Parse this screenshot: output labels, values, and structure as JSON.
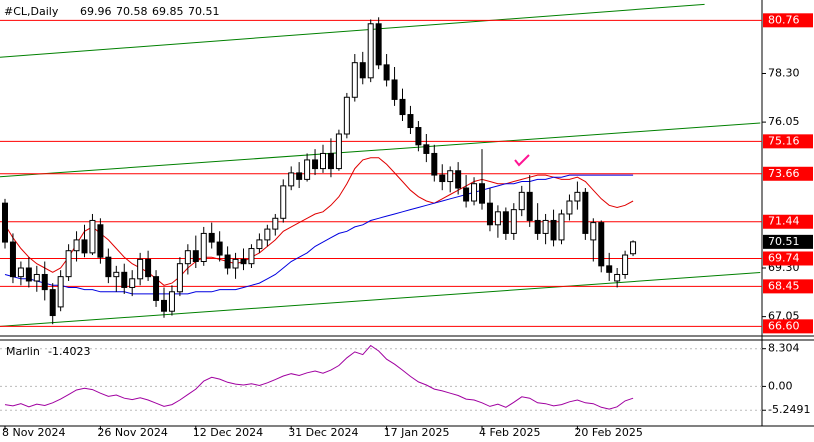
{
  "chart_data": {
    "type": "candlestick",
    "title": "#CL,Daily",
    "categories": [
      "8 Nov 2024",
      null,
      null,
      null,
      null,
      null,
      null,
      null,
      null,
      null,
      null,
      null,
      "26 Nov 2024",
      null,
      null,
      null,
      null,
      null,
      null,
      null,
      null,
      null,
      null,
      null,
      "12 Dec 2024",
      null,
      null,
      null,
      null,
      null,
      null,
      null,
      null,
      null,
      null,
      null,
      "31 Dec 2024",
      null,
      null,
      null,
      null,
      null,
      null,
      null,
      null,
      null,
      null,
      null,
      "17 Jan 2025",
      null,
      null,
      null,
      null,
      null,
      null,
      null,
      null,
      null,
      null,
      null,
      "4 Feb 2025",
      null,
      null,
      null,
      null,
      null,
      null,
      null,
      null,
      null,
      null,
      null,
      "20 Feb 2025",
      null,
      null,
      null,
      null,
      null,
      null,
      null
    ],
    "ohlc": [
      [
        72.3,
        72.5,
        70.2,
        70.5
      ],
      [
        70.5,
        70.9,
        68.6,
        68.9
      ],
      [
        68.9,
        69.6,
        68.5,
        69.3
      ],
      [
        69.3,
        69.8,
        68.4,
        68.7
      ],
      [
        68.7,
        69.4,
        68.2,
        69.0
      ],
      [
        69.0,
        69.6,
        67.8,
        68.3
      ],
      [
        68.3,
        68.6,
        66.7,
        67.1
      ],
      [
        67.5,
        69.2,
        67.3,
        68.9
      ],
      [
        68.9,
        70.4,
        68.7,
        70.1
      ],
      [
        70.1,
        71.0,
        69.6,
        70.6
      ],
      [
        70.6,
        71.3,
        69.8,
        70.0
      ],
      [
        70.0,
        71.8,
        69.9,
        71.5
      ],
      [
        71.3,
        71.6,
        69.5,
        69.8
      ],
      [
        69.8,
        70.2,
        68.6,
        68.9
      ],
      [
        68.9,
        69.4,
        68.2,
        69.1
      ],
      [
        69.1,
        69.5,
        68.1,
        68.4
      ],
      [
        68.4,
        69.2,
        68.0,
        68.8
      ],
      [
        68.8,
        70.0,
        68.5,
        69.7
      ],
      [
        69.7,
        70.1,
        68.7,
        68.9
      ],
      [
        68.9,
        69.2,
        67.5,
        67.8
      ],
      [
        67.8,
        68.4,
        67.0,
        67.3
      ],
      [
        67.3,
        68.5,
        67.1,
        68.2
      ],
      [
        68.2,
        69.8,
        68.0,
        69.5
      ],
      [
        69.5,
        70.4,
        69.0,
        70.1
      ],
      [
        70.1,
        70.8,
        69.3,
        69.6
      ],
      [
        69.6,
        71.2,
        69.4,
        70.9
      ],
      [
        70.9,
        71.4,
        70.2,
        70.5
      ],
      [
        70.5,
        71.0,
        69.6,
        69.9
      ],
      [
        69.9,
        70.3,
        69.0,
        69.3
      ],
      [
        69.3,
        70.0,
        68.8,
        69.7
      ],
      [
        69.7,
        70.2,
        69.2,
        69.5
      ],
      [
        69.5,
        70.4,
        69.3,
        70.2
      ],
      [
        70.2,
        70.9,
        70.0,
        70.6
      ],
      [
        70.6,
        71.3,
        70.3,
        71.1
      ],
      [
        71.1,
        71.8,
        70.8,
        71.6
      ],
      [
        71.6,
        73.4,
        71.4,
        73.1
      ],
      [
        73.1,
        74.0,
        72.9,
        73.7
      ],
      [
        73.7,
        74.2,
        73.0,
        73.4
      ],
      [
        73.4,
        74.6,
        73.3,
        74.3
      ],
      [
        74.3,
        74.8,
        73.6,
        73.9
      ],
      [
        73.9,
        75.0,
        73.7,
        74.6
      ],
      [
        74.6,
        75.3,
        73.5,
        73.9
      ],
      [
        73.9,
        75.7,
        73.8,
        75.5
      ],
      [
        75.5,
        77.4,
        75.3,
        77.2
      ],
      [
        77.2,
        79.2,
        77.0,
        78.8
      ],
      [
        78.8,
        79.3,
        77.8,
        78.1
      ],
      [
        78.1,
        80.8,
        77.9,
        80.6
      ],
      [
        80.6,
        80.9,
        78.5,
        78.7
      ],
      [
        78.7,
        79.2,
        77.7,
        78.0
      ],
      [
        78.0,
        78.6,
        76.8,
        77.1
      ],
      [
        77.1,
        77.6,
        76.1,
        76.4
      ],
      [
        76.4,
        76.8,
        75.5,
        75.8
      ],
      [
        75.8,
        76.1,
        74.7,
        75.0
      ],
      [
        75.0,
        75.5,
        74.2,
        74.6
      ],
      [
        74.6,
        75.0,
        73.3,
        73.6
      ],
      [
        73.6,
        74.1,
        72.9,
        73.3
      ],
      [
        73.3,
        74.0,
        72.8,
        73.8
      ],
      [
        73.8,
        74.2,
        72.7,
        73.0
      ],
      [
        73.0,
        73.6,
        72.1,
        72.4
      ],
      [
        72.4,
        73.5,
        72.2,
        73.2
      ],
      [
        73.2,
        74.8,
        72.0,
        72.3
      ],
      [
        72.3,
        73.0,
        71.0,
        71.3
      ],
      [
        71.3,
        72.2,
        70.7,
        71.9
      ],
      [
        71.9,
        72.1,
        70.6,
        70.9
      ],
      [
        70.9,
        72.3,
        70.6,
        72.0
      ],
      [
        72.0,
        73.1,
        71.7,
        72.8
      ],
      [
        72.8,
        73.6,
        71.2,
        71.5
      ],
      [
        71.5,
        72.3,
        70.6,
        70.9
      ],
      [
        70.9,
        71.8,
        70.4,
        71.5
      ],
      [
        71.5,
        72.0,
        70.3,
        70.6
      ],
      [
        70.6,
        72.0,
        70.4,
        71.8
      ],
      [
        71.8,
        72.7,
        71.5,
        72.4
      ],
      [
        72.4,
        73.3,
        72.0,
        72.8
      ],
      [
        72.8,
        73.0,
        70.6,
        70.9
      ],
      [
        70.6,
        71.6,
        69.6,
        71.4
      ],
      [
        71.4,
        71.5,
        69.1,
        69.4
      ],
      [
        69.4,
        70.0,
        68.7,
        69.1
      ],
      [
        68.7,
        69.3,
        68.4,
        69.0
      ],
      [
        69.0,
        70.1,
        68.8,
        69.9
      ],
      [
        69.96,
        70.58,
        69.85,
        70.51
      ]
    ],
    "lines": [
      {
        "color": "#e00000",
        "values": [
          71.3,
          70.7,
          70.2,
          69.8,
          69.5,
          69.3,
          69.1,
          69.3,
          69.8,
          70.4,
          71.0,
          71.2,
          70.9,
          70.6,
          70.2,
          69.8,
          69.5,
          69.3,
          69.1,
          68.8,
          68.5,
          68.6,
          68.9,
          69.3,
          69.6,
          69.8,
          69.8,
          69.7,
          69.6,
          69.5,
          69.6,
          69.8,
          70.0,
          70.3,
          70.6,
          71.0,
          71.2,
          71.4,
          71.6,
          71.8,
          71.9,
          72.2,
          72.6,
          73.2,
          73.9,
          74.3,
          74.4,
          74.4,
          74.1,
          73.7,
          73.3,
          72.9,
          72.6,
          72.4,
          72.3,
          72.5,
          72.7,
          72.9,
          73.1,
          73.3,
          73.4,
          73.3,
          73.2,
          73.2,
          73.3,
          73.4,
          73.5,
          73.6,
          73.6,
          73.5,
          73.4,
          73.4,
          73.5,
          73.3,
          72.9,
          72.5,
          72.2,
          72.1,
          72.2,
          72.4
        ]
      },
      {
        "color": "#0000e0",
        "values": [
          69.0,
          68.9,
          68.8,
          68.8,
          68.7,
          68.6,
          68.5,
          68.5,
          68.4,
          68.4,
          68.3,
          68.3,
          68.2,
          68.2,
          68.2,
          68.2,
          68.1,
          68.1,
          68.1,
          68.1,
          68.1,
          68.1,
          68.1,
          68.1,
          68.2,
          68.2,
          68.2,
          68.3,
          68.3,
          68.3,
          68.4,
          68.5,
          68.6,
          68.8,
          69.0,
          69.3,
          69.6,
          69.8,
          70.0,
          70.3,
          70.5,
          70.7,
          70.9,
          71.0,
          71.2,
          71.3,
          71.5,
          71.6,
          71.7,
          71.8,
          71.9,
          72.0,
          72.1,
          72.2,
          72.3,
          72.4,
          72.5,
          72.6,
          72.7,
          72.8,
          72.9,
          73.0,
          73.1,
          73.2,
          73.2,
          73.3,
          73.3,
          73.4,
          73.4,
          73.5,
          73.5,
          73.6,
          73.6,
          73.6,
          73.6,
          73.6,
          73.6,
          73.6,
          73.6,
          73.6
        ]
      }
    ],
    "trendlines": {
      "color": "#008000",
      "items": [
        {
          "x": [
            0,
            88
          ],
          "y": [
            79.05,
            81.5
          ]
        },
        {
          "x": [
            0,
            95
          ],
          "y": [
            73.52,
            76.01
          ]
        },
        {
          "x": [
            0,
            95
          ],
          "y": [
            66.6,
            69.09
          ]
        }
      ]
    },
    "levels": {
      "color": "#ff0000",
      "items": [
        80.76,
        75.16,
        73.66,
        71.44,
        69.74,
        68.45,
        {
          "value": 66.6,
          "label": "66.60"
        }
      ]
    },
    "ylim": [
      66.2,
      81.7
    ],
    "yticks": [
      {
        "value": 78.3,
        "label": "78.30"
      },
      {
        "value": 76.05,
        "label": "76.05"
      },
      {
        "value": 69.3,
        "label": "69.30"
      },
      {
        "value": 67.05,
        "label": "67.05"
      }
    ],
    "indicator": {
      "name": "Marlin",
      "value": -1.4023,
      "color": "#a000a0",
      "ylim": [
        -8.5,
        10.0
      ],
      "yticks": [
        8.304,
        {
          "value": 0,
          "label": "0.00"
        },
        -5.2491
      ],
      "values": [
        -4.0,
        -4.3,
        -3.8,
        -4.5,
        -3.9,
        -4.2,
        -3.6,
        -2.8,
        -1.8,
        -0.8,
        -0.4,
        -0.7,
        -1.5,
        -2.2,
        -1.9,
        -2.6,
        -2.9,
        -2.5,
        -3.0,
        -3.7,
        -4.4,
        -4.0,
        -3.0,
        -1.8,
        -0.6,
        1.2,
        2.0,
        1.6,
        0.9,
        0.5,
        0.3,
        0.6,
        0.2,
        0.8,
        1.5,
        2.3,
        2.8,
        2.4,
        3.0,
        3.4,
        2.9,
        3.6,
        4.6,
        6.3,
        7.6,
        7.0,
        9.0,
        7.8,
        6.0,
        4.9,
        3.6,
        2.2,
        1.0,
        0.3,
        -0.6,
        -1.0,
        -1.5,
        -2.0,
        -2.8,
        -3.0,
        -3.6,
        -4.4,
        -3.9,
        -4.6,
        -3.5,
        -2.3,
        -2.6,
        -3.6,
        -3.8,
        -4.3,
        -4.0,
        -3.4,
        -3.0,
        -3.6,
        -3.8,
        -4.6,
        -5.0,
        -4.5,
        -3.2,
        -2.6
      ]
    }
  }
}
